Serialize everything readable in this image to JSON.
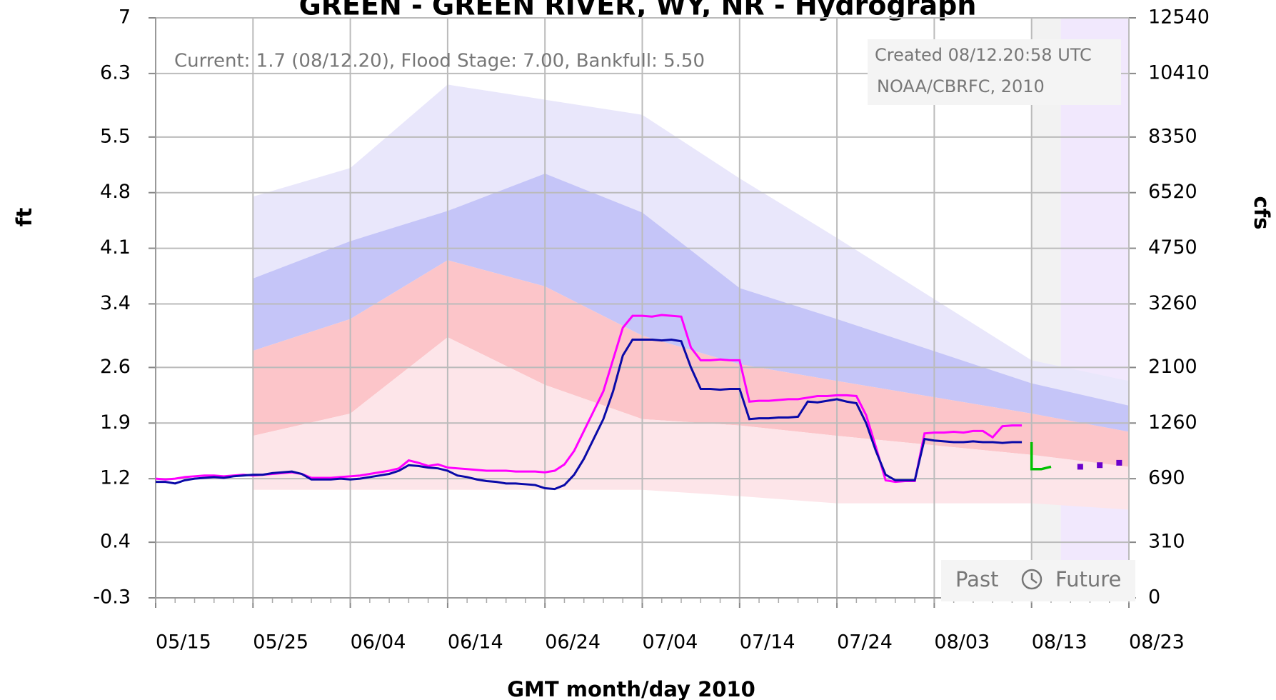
{
  "chart_data": {
    "type": "line",
    "title": "GREEN - GREEN RIVER, WY, NR - Hydrograph",
    "xlabel": "GMT month/day 2010",
    "ylabel": "ft",
    "y2label": "cfs",
    "info_text": "Current: 1.7 (08/12.20), Flood Stage: 7.00, Bankfull: 5.50",
    "created": "Created 08/12.20:58 UTC",
    "credit": "NOAA/CBRFC, 2010",
    "past_label": "Past",
    "future_label": "Future",
    "xlim": [
      "2010-05-15",
      "2010-08-23"
    ],
    "xticks": [
      {
        "value": "2010-05-15",
        "label": "05/15"
      },
      {
        "value": "2010-05-25",
        "label": "05/25"
      },
      {
        "value": "2010-06-04",
        "label": "06/04"
      },
      {
        "value": "2010-06-14",
        "label": "06/14"
      },
      {
        "value": "2010-06-24",
        "label": "06/24"
      },
      {
        "value": "2010-07-04",
        "label": "07/04"
      },
      {
        "value": "2010-07-14",
        "label": "07/14"
      },
      {
        "value": "2010-07-24",
        "label": "07/24"
      },
      {
        "value": "2010-08-03",
        "label": "08/03"
      },
      {
        "value": "2010-08-13",
        "label": "08/13"
      },
      {
        "value": "2010-08-23",
        "label": "08/23"
      }
    ],
    "ylim": [
      -0.3,
      7.0
    ],
    "yticks": [
      -0.3,
      0.4,
      1.2,
      1.9,
      2.6,
      3.4,
      4.1,
      4.8,
      5.5,
      6.3,
      7.0
    ],
    "y2ticks": [
      0,
      310,
      690,
      1260,
      2100,
      3260,
      4750,
      6520,
      8350,
      10410,
      12540
    ],
    "grid": true,
    "past_end": "2010-08-13",
    "future_start": "2010-08-16",
    "band_x": [
      "2010-05-25",
      "2010-06-04",
      "2010-06-14",
      "2010-06-24",
      "2010-07-04",
      "2010-07-14",
      "2010-07-24",
      "2010-08-13",
      "2010-08-23"
    ],
    "bands": [
      {
        "color": "#e9e7fb",
        "upper": [
          4.75,
          5.11,
          6.16,
          5.97,
          5.78,
          4.98,
          4.23,
          2.69,
          2.43
        ],
        "lower": [
          3.72,
          4.19,
          4.57,
          5.04,
          4.55,
          3.6,
          3.21,
          2.4,
          2.12
        ]
      },
      {
        "color": "#c5c5f8",
        "upper": [
          3.72,
          4.19,
          4.57,
          5.04,
          4.55,
          3.6,
          3.21,
          2.4,
          2.12
        ],
        "lower": [
          2.81,
          3.21,
          3.95,
          3.62,
          3.0,
          2.64,
          2.43,
          2.02,
          1.79
        ]
      },
      {
        "color": "#fcc5c9",
        "upper": [
          2.81,
          3.21,
          3.95,
          3.62,
          3.0,
          2.64,
          2.43,
          2.02,
          1.79
        ],
        "lower": [
          1.74,
          2.02,
          2.98,
          2.38,
          1.95,
          1.87,
          1.74,
          1.5,
          1.35
        ]
      },
      {
        "color": "#fde5e9",
        "upper": [
          1.74,
          2.02,
          2.98,
          2.38,
          1.95,
          1.87,
          1.74,
          1.5,
          1.35
        ],
        "lower": [
          1.06,
          1.06,
          1.06,
          1.06,
          1.06,
          0.98,
          0.89,
          0.89,
          0.81
        ]
      }
    ],
    "obs_x_start": "2010-05-15",
    "series": [
      {
        "color": "#ff00ff",
        "style": "line",
        "values": [
          1.2,
          1.19,
          1.2,
          1.22,
          1.23,
          1.24,
          1.24,
          1.23,
          1.24,
          1.25,
          1.24,
          1.25,
          1.26,
          1.27,
          1.28,
          1.26,
          1.21,
          1.21,
          1.21,
          1.22,
          1.23,
          1.24,
          1.26,
          1.28,
          1.3,
          1.33,
          1.43,
          1.4,
          1.36,
          1.38,
          1.34,
          1.33,
          1.32,
          1.31,
          1.3,
          1.3,
          1.3,
          1.29,
          1.29,
          1.29,
          1.28,
          1.3,
          1.38,
          1.55,
          1.8,
          2.05,
          2.3,
          2.7,
          3.1,
          3.25,
          3.25,
          3.24,
          3.26,
          3.25,
          3.24,
          2.85,
          2.69,
          2.69,
          2.7,
          2.69,
          2.69,
          2.17,
          2.18,
          2.18,
          2.19,
          2.2,
          2.2,
          2.22,
          2.24,
          2.24,
          2.25,
          2.25,
          2.24,
          2.0,
          1.6,
          1.18,
          1.16,
          1.17,
          1.17,
          1.77,
          1.78,
          1.78,
          1.79,
          1.78,
          1.8,
          1.8,
          1.72,
          1.86,
          1.87,
          1.87
        ]
      },
      {
        "color": "#0a0aa8",
        "style": "line",
        "values": [
          1.16,
          1.16,
          1.14,
          1.18,
          1.2,
          1.21,
          1.22,
          1.21,
          1.23,
          1.24,
          1.25,
          1.25,
          1.27,
          1.28,
          1.29,
          1.26,
          1.19,
          1.19,
          1.19,
          1.2,
          1.19,
          1.2,
          1.22,
          1.24,
          1.26,
          1.3,
          1.37,
          1.36,
          1.34,
          1.33,
          1.3,
          1.24,
          1.22,
          1.19,
          1.17,
          1.16,
          1.14,
          1.14,
          1.13,
          1.12,
          1.08,
          1.07,
          1.12,
          1.25,
          1.45,
          1.7,
          1.95,
          2.3,
          2.75,
          2.95,
          2.95,
          2.95,
          2.94,
          2.95,
          2.93,
          2.6,
          2.33,
          2.33,
          2.32,
          2.33,
          2.33,
          1.95,
          1.96,
          1.96,
          1.97,
          1.97,
          1.98,
          2.17,
          2.16,
          2.18,
          2.2,
          2.17,
          2.15,
          1.9,
          1.55,
          1.25,
          1.18,
          1.18,
          1.18,
          1.7,
          1.68,
          1.67,
          1.66,
          1.66,
          1.67,
          1.66,
          1.66,
          1.65,
          1.66,
          1.66
        ]
      },
      {
        "color": "#00c000",
        "style": "step",
        "x": [
          "2010-08-13",
          "2010-08-13",
          "2010-08-14",
          "2010-08-15"
        ],
        "values": [
          1.66,
          1.32,
          1.32,
          1.35
        ]
      },
      {
        "color": "#6a00cc",
        "style": "dots",
        "x": [
          "2010-08-18",
          "2010-08-20",
          "2010-08-22"
        ],
        "values": [
          1.35,
          1.37,
          1.4
        ]
      }
    ]
  }
}
